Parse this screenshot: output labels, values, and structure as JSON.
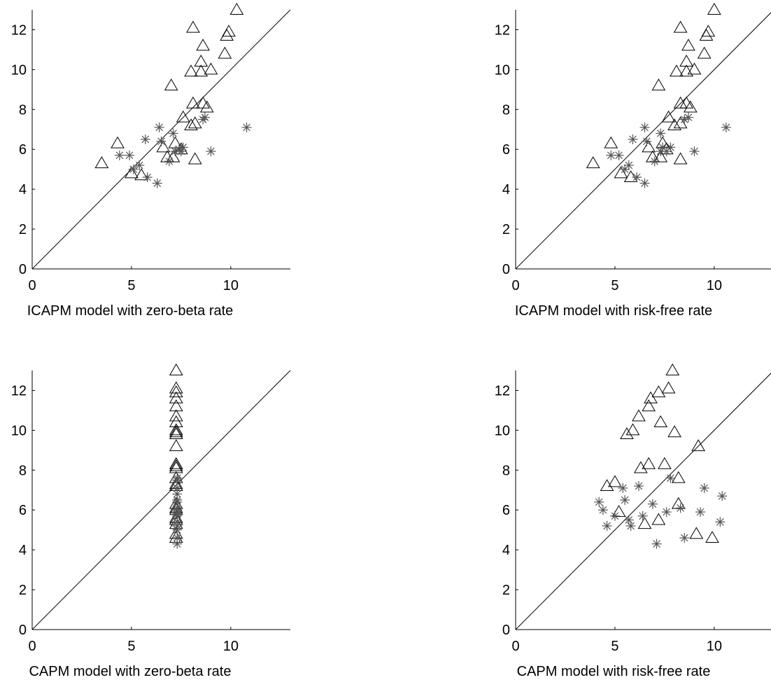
{
  "chart_data": [
    {
      "type": "scatter",
      "xlabel": "ICAPM model with zero-beta rate",
      "xlim": [
        0,
        13
      ],
      "ylim": [
        0,
        13
      ],
      "xticks": [
        0,
        5,
        10
      ],
      "yticks": [
        0,
        2,
        4,
        6,
        8,
        10,
        12
      ],
      "diagonal": [
        [
          0,
          0
        ],
        [
          13,
          13
        ]
      ],
      "series": [
        {
          "marker": "triangle",
          "points": [
            [
              3.5,
              5.3
            ],
            [
              4.3,
              6.3
            ],
            [
              5.0,
              4.8
            ],
            [
              5.5,
              4.7
            ],
            [
              6.6,
              6.1
            ],
            [
              6.8,
              5.6
            ],
            [
              7.0,
              9.2
            ],
            [
              7.1,
              5.6
            ],
            [
              7.2,
              6.3
            ],
            [
              7.5,
              6.0
            ],
            [
              7.6,
              7.6
            ],
            [
              8.0,
              7.2
            ],
            [
              8.0,
              9.9
            ],
            [
              8.1,
              8.3
            ],
            [
              8.1,
              12.1
            ],
            [
              8.2,
              5.5
            ],
            [
              8.2,
              7.3
            ],
            [
              8.5,
              9.9
            ],
            [
              8.5,
              10.4
            ],
            [
              8.6,
              11.2
            ],
            [
              8.6,
              8.3
            ],
            [
              8.8,
              8.1
            ],
            [
              9.0,
              10.0
            ],
            [
              9.7,
              10.8
            ],
            [
              9.8,
              11.7
            ],
            [
              9.9,
              11.9
            ],
            [
              10.3,
              13.0
            ]
          ]
        },
        {
          "marker": "star",
          "points": [
            [
              4.4,
              5.7
            ],
            [
              4.9,
              5.7
            ],
            [
              5.1,
              5.0
            ],
            [
              5.4,
              5.2
            ],
            [
              5.7,
              6.5
            ],
            [
              5.8,
              4.6
            ],
            [
              6.3,
              4.3
            ],
            [
              6.4,
              7.1
            ],
            [
              6.5,
              6.4
            ],
            [
              6.9,
              5.4
            ],
            [
              7.1,
              6.8
            ],
            [
              7.2,
              5.9
            ],
            [
              7.4,
              6.0
            ],
            [
              7.5,
              5.9
            ],
            [
              7.6,
              6.1
            ],
            [
              8.6,
              7.5
            ],
            [
              8.7,
              7.6
            ],
            [
              9.0,
              5.9
            ],
            [
              10.8,
              7.1
            ]
          ]
        }
      ]
    },
    {
      "type": "scatter",
      "xlabel": "ICAPM model with risk-free rate",
      "xlim": [
        0,
        13
      ],
      "ylim": [
        0,
        13
      ],
      "xticks": [
        0,
        5,
        10
      ],
      "yticks": [
        0,
        2,
        4,
        6,
        8,
        10,
        12
      ],
      "diagonal": [
        [
          0,
          0
        ],
        [
          13,
          13
        ]
      ],
      "series": [
        {
          "marker": "triangle",
          "points": [
            [
              3.9,
              5.3
            ],
            [
              4.8,
              6.3
            ],
            [
              5.3,
              4.8
            ],
            [
              5.8,
              4.6
            ],
            [
              6.7,
              6.1
            ],
            [
              6.9,
              5.6
            ],
            [
              7.2,
              9.2
            ],
            [
              7.3,
              5.6
            ],
            [
              7.4,
              6.3
            ],
            [
              7.6,
              6.0
            ],
            [
              7.7,
              7.6
            ],
            [
              8.0,
              7.2
            ],
            [
              8.1,
              9.9
            ],
            [
              8.3,
              8.3
            ],
            [
              8.3,
              12.1
            ],
            [
              8.3,
              5.5
            ],
            [
              8.3,
              7.3
            ],
            [
              8.6,
              9.9
            ],
            [
              8.6,
              10.4
            ],
            [
              8.7,
              11.2
            ],
            [
              8.6,
              8.3
            ],
            [
              8.8,
              8.1
            ],
            [
              9.0,
              10.0
            ],
            [
              9.5,
              10.8
            ],
            [
              9.6,
              11.7
            ],
            [
              9.7,
              11.9
            ],
            [
              10.0,
              13.0
            ]
          ]
        },
        {
          "marker": "star",
          "points": [
            [
              4.8,
              5.7
            ],
            [
              5.2,
              5.7
            ],
            [
              5.5,
              5.0
            ],
            [
              5.7,
              5.2
            ],
            [
              5.9,
              6.5
            ],
            [
              6.1,
              4.6
            ],
            [
              6.5,
              4.3
            ],
            [
              6.5,
              7.1
            ],
            [
              6.6,
              6.4
            ],
            [
              7.0,
              5.4
            ],
            [
              7.3,
              6.8
            ],
            [
              7.3,
              5.9
            ],
            [
              7.4,
              6.1
            ],
            [
              7.6,
              5.9
            ],
            [
              7.8,
              6.1
            ],
            [
              8.5,
              7.5
            ],
            [
              8.7,
              7.6
            ],
            [
              9.0,
              5.9
            ],
            [
              10.6,
              7.1
            ]
          ]
        }
      ]
    },
    {
      "type": "scatter",
      "xlabel": "CAPM model with zero-beta rate",
      "xlim": [
        0,
        13
      ],
      "ylim": [
        0,
        13
      ],
      "xticks": [
        0,
        5,
        10
      ],
      "yticks": [
        0,
        2,
        4,
        6,
        8,
        10,
        12
      ],
      "diagonal": [
        [
          0,
          0
        ],
        [
          13,
          13
        ]
      ],
      "series": [
        {
          "marker": "triangle",
          "points": [
            [
              7.25,
              13.0
            ],
            [
              7.25,
              12.1
            ],
            [
              7.25,
              11.9
            ],
            [
              7.25,
              11.6
            ],
            [
              7.25,
              11.2
            ],
            [
              7.25,
              10.7
            ],
            [
              7.25,
              10.4
            ],
            [
              7.25,
              10.0
            ],
            [
              7.25,
              9.9
            ],
            [
              7.25,
              9.8
            ],
            [
              7.25,
              9.2
            ],
            [
              7.25,
              8.3
            ],
            [
              7.25,
              8.2
            ],
            [
              7.25,
              8.1
            ],
            [
              7.25,
              7.6
            ],
            [
              7.25,
              7.3
            ],
            [
              7.25,
              7.2
            ],
            [
              7.25,
              6.3
            ],
            [
              7.25,
              6.1
            ],
            [
              7.25,
              6.0
            ],
            [
              7.25,
              5.6
            ],
            [
              7.25,
              5.5
            ],
            [
              7.25,
              5.3
            ],
            [
              7.25,
              4.8
            ],
            [
              7.25,
              4.6
            ]
          ]
        },
        {
          "marker": "star",
          "points": [
            [
              7.3,
              7.6
            ],
            [
              7.3,
              7.5
            ],
            [
              7.3,
              7.1
            ],
            [
              7.3,
              6.8
            ],
            [
              7.3,
              6.5
            ],
            [
              7.3,
              6.4
            ],
            [
              7.3,
              6.1
            ],
            [
              7.3,
              6.0
            ],
            [
              7.3,
              5.9
            ],
            [
              7.3,
              5.8
            ],
            [
              7.3,
              5.7
            ],
            [
              7.3,
              5.4
            ],
            [
              7.3,
              5.2
            ],
            [
              7.3,
              5.0
            ],
            [
              7.3,
              4.6
            ],
            [
              7.3,
              4.3
            ]
          ]
        }
      ]
    },
    {
      "type": "scatter",
      "xlabel": "CAPM model with risk-free rate",
      "xlim": [
        0,
        13
      ],
      "ylim": [
        0,
        13
      ],
      "xticks": [
        0,
        5,
        10
      ],
      "yticks": [
        0,
        2,
        4,
        6,
        8,
        10,
        12
      ],
      "diagonal": [
        [
          0,
          0
        ],
        [
          13,
          13
        ]
      ],
      "series": [
        {
          "marker": "triangle",
          "points": [
            [
              4.6,
              7.2
            ],
            [
              5.0,
              7.4
            ],
            [
              5.2,
              5.9
            ],
            [
              5.6,
              9.8
            ],
            [
              5.9,
              10.0
            ],
            [
              6.2,
              10.7
            ],
            [
              6.3,
              8.1
            ],
            [
              6.5,
              5.3
            ],
            [
              6.7,
              8.3
            ],
            [
              6.7,
              11.2
            ],
            [
              6.8,
              11.6
            ],
            [
              7.2,
              11.9
            ],
            [
              7.2,
              5.5
            ],
            [
              7.3,
              10.4
            ],
            [
              7.5,
              8.3
            ],
            [
              7.7,
              12.1
            ],
            [
              7.9,
              13.0
            ],
            [
              8.0,
              9.9
            ],
            [
              8.2,
              7.6
            ],
            [
              8.2,
              6.3
            ],
            [
              9.1,
              4.8
            ],
            [
              9.2,
              9.2
            ],
            [
              9.9,
              4.6
            ]
          ]
        },
        {
          "marker": "star",
          "points": [
            [
              4.2,
              6.4
            ],
            [
              4.4,
              6.0
            ],
            [
              4.6,
              5.2
            ],
            [
              5.0,
              5.7
            ],
            [
              5.4,
              7.1
            ],
            [
              5.5,
              6.5
            ],
            [
              5.7,
              5.5
            ],
            [
              5.8,
              5.2
            ],
            [
              6.2,
              7.2
            ],
            [
              6.4,
              5.7
            ],
            [
              6.9,
              6.3
            ],
            [
              7.1,
              4.3
            ],
            [
              7.6,
              5.9
            ],
            [
              7.8,
              7.6
            ],
            [
              8.3,
              6.1
            ],
            [
              8.5,
              4.6
            ],
            [
              9.3,
              5.9
            ],
            [
              9.5,
              7.1
            ],
            [
              10.3,
              5.4
            ],
            [
              10.4,
              6.7
            ]
          ]
        }
      ]
    }
  ]
}
